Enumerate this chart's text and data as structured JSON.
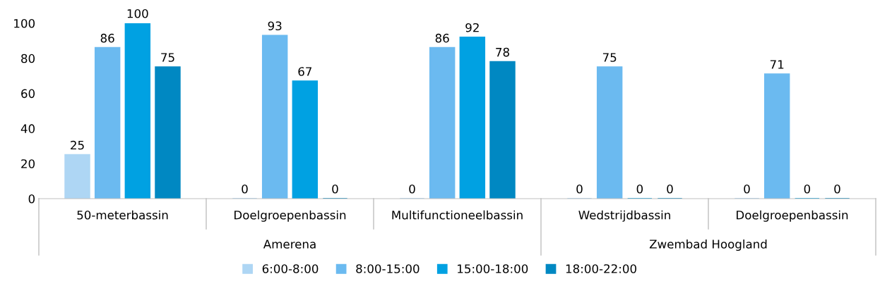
{
  "chart_data": {
    "type": "bar",
    "categories": [
      "50-meterbassin",
      "Doelgroepenbassin",
      "Multifunctioneelbassin",
      "Wedstrijdbassin",
      "Doelgroepenbassin"
    ],
    "series": [
      {
        "name": "6:00-8:00",
        "color": "#aed6f4",
        "values": [
          25,
          0,
          0,
          0,
          0
        ]
      },
      {
        "name": "8:00-15:00",
        "color": "#6bbaf0",
        "values": [
          86,
          93,
          86,
          75,
          71
        ]
      },
      {
        "name": "15:00-18:00",
        "color": "#00a1e2",
        "values": [
          100,
          67,
          92,
          0,
          0
        ]
      },
      {
        "name": "18:00-22:00",
        "color": "#0088c2",
        "values": [
          75,
          0,
          78,
          0,
          0
        ]
      }
    ],
    "annotations": [
      "Amerena",
      "Zwembad Hoogland"
    ],
    "ylim": [
      0,
      100
    ],
    "yticks": [
      0,
      20,
      40,
      60,
      80,
      100
    ],
    "grid": false,
    "legend": "bottom",
    "data_labels": true
  }
}
